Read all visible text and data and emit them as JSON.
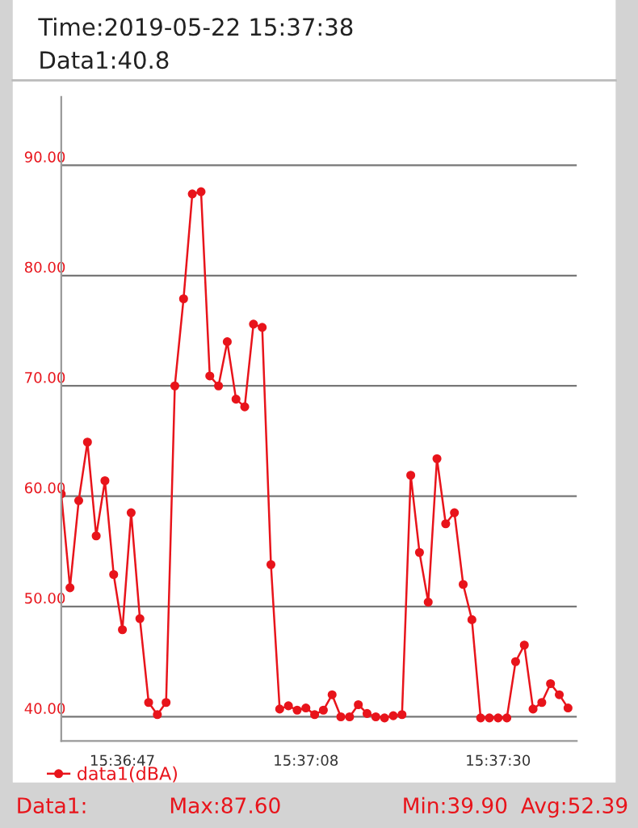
{
  "chart_data": {
    "type": "line",
    "title": "Time:2019-05-22 15:37:38",
    "subtitle": "Data1:40.8",
    "x": [
      "2019-05-22T15:36:40",
      "2019-05-22T15:36:41",
      "2019-05-22T15:36:42",
      "2019-05-22T15:36:43",
      "2019-05-22T15:36:44",
      "2019-05-22T15:36:45",
      "2019-05-22T15:36:46",
      "2019-05-22T15:36:47",
      "2019-05-22T15:36:48",
      "2019-05-22T15:36:49",
      "2019-05-22T15:36:50",
      "2019-05-22T15:36:51",
      "2019-05-22T15:36:52",
      "2019-05-22T15:36:53",
      "2019-05-22T15:36:54",
      "2019-05-22T15:36:55",
      "2019-05-22T15:36:56",
      "2019-05-22T15:36:57",
      "2019-05-22T15:36:58",
      "2019-05-22T15:36:59",
      "2019-05-22T15:37:00",
      "2019-05-22T15:37:01",
      "2019-05-22T15:37:02",
      "2019-05-22T15:37:03",
      "2019-05-22T15:37:04",
      "2019-05-22T15:37:05",
      "2019-05-22T15:37:06",
      "2019-05-22T15:37:07",
      "2019-05-22T15:37:08",
      "2019-05-22T15:37:09",
      "2019-05-22T15:37:10",
      "2019-05-22T15:37:11",
      "2019-05-22T15:37:12",
      "2019-05-22T15:37:13",
      "2019-05-22T15:37:14",
      "2019-05-22T15:37:15",
      "2019-05-22T15:37:16",
      "2019-05-22T15:37:17",
      "2019-05-22T15:37:18",
      "2019-05-22T15:37:19",
      "2019-05-22T15:37:20",
      "2019-05-22T15:37:21",
      "2019-05-22T15:37:22",
      "2019-05-22T15:37:23",
      "2019-05-22T15:37:24",
      "2019-05-22T15:37:25",
      "2019-05-22T15:37:26",
      "2019-05-22T15:37:27",
      "2019-05-22T15:37:28",
      "2019-05-22T15:37:29",
      "2019-05-22T15:37:30",
      "2019-05-22T15:37:31",
      "2019-05-22T15:37:32",
      "2019-05-22T15:37:33",
      "2019-05-22T15:37:34",
      "2019-05-22T15:37:35",
      "2019-05-22T15:37:36",
      "2019-05-22T15:37:37",
      "2019-05-22T15:37:38"
    ],
    "series": [
      {
        "name": "data1(dBA)",
        "color": "#e8141b",
        "values": [
          60.2,
          51.7,
          59.6,
          64.9,
          56.4,
          61.4,
          52.9,
          47.9,
          58.5,
          48.9,
          41.3,
          40.2,
          41.3,
          70.0,
          77.9,
          87.4,
          87.6,
          70.9,
          70.0,
          74.0,
          68.8,
          68.1,
          75.6,
          75.3,
          53.8,
          40.7,
          41.0,
          40.6,
          40.8,
          40.2,
          40.6,
          42.0,
          40.0,
          40.0,
          41.1,
          40.3,
          40.0,
          39.9,
          40.1,
          40.2,
          61.9,
          54.9,
          50.4,
          63.4,
          57.5,
          58.5,
          52.0,
          48.8,
          39.9,
          39.9,
          39.9,
          39.9,
          45.0,
          46.5,
          40.7,
          41.3,
          43.0,
          42.0,
          40.8
        ]
      }
    ],
    "xlim": [
      "2019-05-22T15:36:40",
      "2019-05-22T15:37:39"
    ],
    "xticks": [
      {
        "value": "2019-05-22T15:36:47",
        "label": "15:36:47"
      },
      {
        "value": "2019-05-22T15:37:08",
        "label": "15:37:08"
      },
      {
        "value": "2019-05-22T15:37:30",
        "label": "15:37:30"
      }
    ],
    "ylim": [
      37.8,
      96.2
    ],
    "yticks": [
      {
        "value": 40,
        "label": "40.00"
      },
      {
        "value": 50,
        "label": "50.00"
      },
      {
        "value": 60,
        "label": "60.00"
      },
      {
        "value": 70,
        "label": "70.00"
      },
      {
        "value": 80,
        "label": "80.00"
      },
      {
        "value": 90,
        "label": "90.00"
      }
    ],
    "grid": "y",
    "legend": "bottom",
    "marker": "circle",
    "line_style": "solid",
    "annotations": [
      "Data1:",
      "Max:87.60",
      "Min:39.90",
      "Avg:52.39"
    ]
  }
}
